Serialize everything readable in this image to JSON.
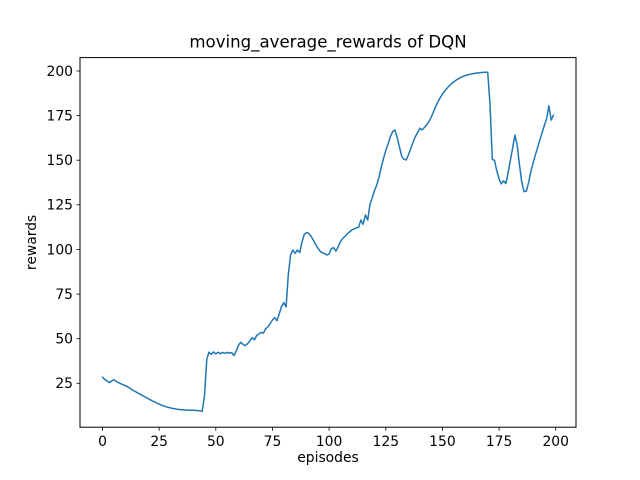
{
  "figure": {
    "background_color": "#ffffff",
    "text_color": "#000000",
    "spine_color": "#000000"
  },
  "chart_data": {
    "type": "line",
    "title": "moving_average_rewards of DQN",
    "xlabel": "episodes",
    "ylabel": "rewards",
    "legend": "none",
    "grid": false,
    "line_color": "#1f77b4",
    "line_width": 1.5,
    "xlim": [
      -9.95,
      208.95
    ],
    "ylim": [
      0.4,
      207.5
    ],
    "xticks": [
      0,
      25,
      50,
      75,
      100,
      125,
      150,
      175,
      200
    ],
    "yticks": [
      25,
      50,
      75,
      100,
      125,
      150,
      175,
      200
    ],
    "x_is_episode_index_starting_at": 0,
    "series": [
      {
        "name": "moving_average_rewards",
        "values": [
          28.4,
          27.2,
          26.3,
          25.4,
          26.3,
          27.0,
          26.1,
          25.4,
          24.8,
          24.2,
          23.7,
          23.1,
          22.3,
          21.4,
          20.7,
          20.0,
          19.3,
          18.6,
          17.9,
          17.2,
          16.5,
          15.8,
          15.1,
          14.5,
          13.9,
          13.3,
          12.8,
          12.3,
          11.9,
          11.5,
          11.2,
          10.9,
          10.7,
          10.5,
          10.3,
          10.2,
          10.1,
          10.0,
          10.0,
          9.9,
          9.9,
          9.8,
          9.7,
          9.6,
          9.3,
          18.0,
          38.5,
          42.4,
          41.2,
          42.6,
          41.5,
          42.4,
          41.6,
          42.3,
          41.8,
          42.3,
          41.9,
          42.2,
          40.5,
          43.0,
          46.4,
          48.0,
          46.8,
          46.1,
          47.2,
          48.7,
          50.6,
          49.3,
          51.8,
          52.6,
          53.6,
          53.1,
          55.6,
          56.6,
          58.5,
          60.5,
          61.8,
          60.1,
          64.0,
          68.0,
          70.2,
          67.8,
          86.0,
          97.0,
          99.7,
          97.8,
          99.7,
          98.2,
          104.0,
          108.3,
          109.5,
          109.1,
          107.5,
          105.3,
          103.0,
          100.8,
          99.0,
          98.2,
          97.6,
          96.9,
          97.5,
          100.5,
          101.0,
          99.1,
          101.5,
          104.4,
          106.2,
          107.3,
          108.7,
          109.8,
          110.9,
          111.5,
          112.1,
          112.4,
          116.5,
          114.1,
          119.3,
          116.5,
          125.0,
          129.0,
          133.0,
          136.0,
          140.5,
          146.0,
          151.0,
          155.5,
          159.0,
          163.0,
          166.0,
          167.0,
          163.0,
          157.5,
          152.5,
          150.5,
          150.2,
          153.0,
          156.5,
          160.0,
          163.0,
          165.5,
          167.9,
          167.0,
          168.3,
          169.8,
          171.6,
          174.0,
          177.0,
          180.0,
          182.7,
          185.0,
          187.0,
          188.8,
          190.3,
          191.7,
          192.9,
          193.9,
          194.8,
          195.6,
          196.3,
          196.9,
          197.4,
          197.8,
          198.1,
          198.4,
          198.6,
          198.8,
          199.0,
          199.1,
          199.2,
          199.3,
          199.3,
          181.5,
          150.5,
          149.9,
          144.0,
          139.5,
          136.8,
          138.4,
          136.9,
          143.0,
          150.1,
          157.0,
          164.1,
          158.5,
          147.3,
          138.0,
          132.4,
          132.6,
          137.2,
          143.6,
          148.5,
          152.8,
          157.0,
          161.5,
          165.5,
          169.5,
          173.5,
          180.5,
          172.5,
          175.3
        ]
      }
    ]
  }
}
